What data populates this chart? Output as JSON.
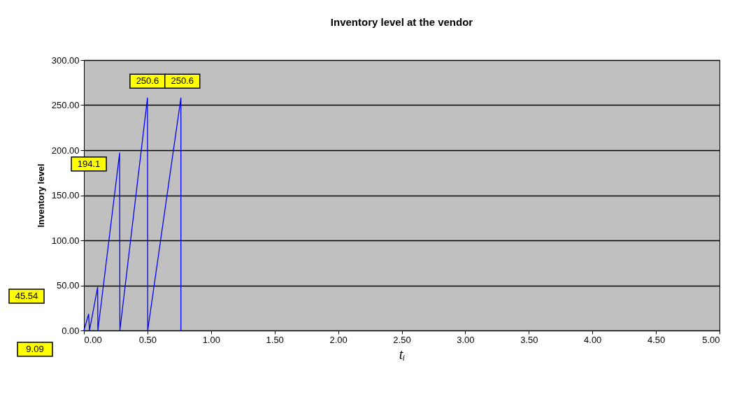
{
  "chart_data": {
    "type": "line",
    "title": "Inventory level at the vendor",
    "xlabel": "tᵢ",
    "ylabel": "Inventory level",
    "series": [
      {
        "color": "#0000ff",
        "x": [
          0,
          0.037,
          0.044,
          0.108,
          0.11,
          0.281,
          0.283,
          0.5,
          0.502,
          0.763,
          0.763
        ],
        "values": [
          0,
          18,
          0,
          48,
          0,
          197,
          0,
          258,
          0,
          258,
          0
        ]
      }
    ],
    "xlim": [
      0,
      5
    ],
    "xticks": [
      {
        "value": 0,
        "label": "0.00"
      },
      {
        "value": 0.5,
        "label": "0.50"
      },
      {
        "value": 1,
        "label": "1.00"
      },
      {
        "value": 1.5,
        "label": "1.50"
      },
      {
        "value": 2,
        "label": "2.00"
      },
      {
        "value": 2.5,
        "label": "2.50"
      },
      {
        "value": 3,
        "label": "3.00"
      },
      {
        "value": 3.5,
        "label": "3.50"
      },
      {
        "value": 4,
        "label": "4.00"
      },
      {
        "value": 4.5,
        "label": "4.50"
      },
      {
        "value": 5,
        "label": "5.00"
      }
    ],
    "ylim": [
      0,
      300
    ],
    "yticks": [
      {
        "value": 0,
        "label": "0.00"
      },
      {
        "value": 50,
        "label": "50.00"
      },
      {
        "value": 100,
        "label": "100.00"
      },
      {
        "value": 150,
        "label": "150.00"
      },
      {
        "value": 200,
        "label": "200.00"
      },
      {
        "value": 250,
        "label": "250.00"
      },
      {
        "value": 300,
        "label": "300.00"
      }
    ],
    "grid": "y",
    "marker": "none",
    "line_style": "solid",
    "annotations": [
      {
        "text": "250.6",
        "x": 0.5,
        "y": 258
      },
      {
        "text": "250.6",
        "x": 0.763,
        "y": 258
      },
      {
        "text": "194.1",
        "x": 0.281,
        "y": 197
      },
      "45.54",
      "9.09"
    ]
  }
}
